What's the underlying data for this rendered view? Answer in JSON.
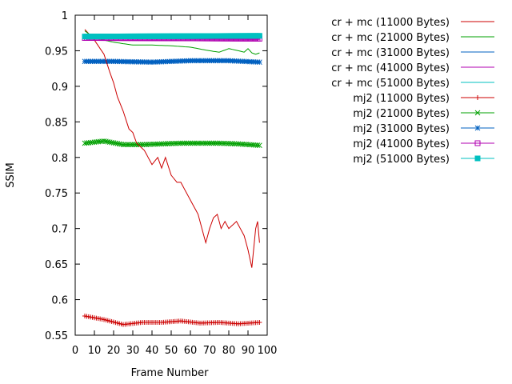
{
  "chart_data": {
    "type": "line",
    "title": "",
    "xlabel": "Frame Number",
    "ylabel": "SSIM",
    "xlim": [
      0,
      100
    ],
    "ylim": [
      0.55,
      1.0
    ],
    "x_ticks": [
      0,
      10,
      20,
      30,
      40,
      50,
      60,
      70,
      80,
      90,
      100
    ],
    "y_ticks": [
      0.55,
      0.6,
      0.65,
      0.7,
      0.75,
      0.8,
      0.85,
      0.9,
      0.95,
      1
    ],
    "grid": false,
    "legend_position": "top-right outside plot",
    "x_range": {
      "start": 5,
      "end": 96,
      "step": 1
    },
    "series": [
      {
        "name": "cr + mc (11000 Bytes)",
        "color": "#cc0000",
        "marker": "none",
        "keypoints": [
          [
            5,
            0.98
          ],
          [
            10,
            0.965
          ],
          [
            15,
            0.945
          ],
          [
            18,
            0.92
          ],
          [
            20,
            0.905
          ],
          [
            22,
            0.885
          ],
          [
            25,
            0.865
          ],
          [
            28,
            0.84
          ],
          [
            30,
            0.835
          ],
          [
            32,
            0.82
          ],
          [
            34,
            0.815
          ],
          [
            36,
            0.81
          ],
          [
            38,
            0.8
          ],
          [
            40,
            0.79
          ],
          [
            43,
            0.8
          ],
          [
            45,
            0.785
          ],
          [
            47,
            0.8
          ],
          [
            50,
            0.775
          ],
          [
            53,
            0.765
          ],
          [
            55,
            0.765
          ],
          [
            58,
            0.75
          ],
          [
            60,
            0.74
          ],
          [
            62,
            0.73
          ],
          [
            64,
            0.72
          ],
          [
            66,
            0.7
          ],
          [
            68,
            0.68
          ],
          [
            70,
            0.7
          ],
          [
            72,
            0.715
          ],
          [
            74,
            0.72
          ],
          [
            76,
            0.7
          ],
          [
            78,
            0.71
          ],
          [
            80,
            0.7
          ],
          [
            82,
            0.705
          ],
          [
            84,
            0.71
          ],
          [
            86,
            0.7
          ],
          [
            88,
            0.69
          ],
          [
            90,
            0.67
          ],
          [
            92,
            0.645
          ],
          [
            94,
            0.7
          ],
          [
            95,
            0.71
          ],
          [
            96,
            0.68
          ]
        ]
      },
      {
        "name": "cr + mc (21000 Bytes)",
        "color": "#00a000",
        "marker": "none",
        "keypoints": [
          [
            5,
            0.978
          ],
          [
            10,
            0.968
          ],
          [
            20,
            0.962
          ],
          [
            30,
            0.958
          ],
          [
            40,
            0.958
          ],
          [
            50,
            0.957
          ],
          [
            60,
            0.955
          ],
          [
            70,
            0.95
          ],
          [
            75,
            0.948
          ],
          [
            80,
            0.953
          ],
          [
            85,
            0.95
          ],
          [
            88,
            0.948
          ],
          [
            90,
            0.953
          ],
          [
            92,
            0.947
          ],
          [
            94,
            0.945
          ],
          [
            96,
            0.947
          ]
        ]
      },
      {
        "name": "cr + mc (31000 Bytes)",
        "color": "#0060c0",
        "marker": "none",
        "keypoints": [
          [
            5,
            0.968
          ],
          [
            96,
            0.967
          ]
        ]
      },
      {
        "name": "cr + mc (41000 Bytes)",
        "color": "#b000b0",
        "marker": "none",
        "keypoints": [
          [
            5,
            0.967
          ],
          [
            96,
            0.966
          ]
        ]
      },
      {
        "name": "cr + mc (51000 Bytes)",
        "color": "#00c0c0",
        "marker": "none",
        "keypoints": [
          [
            5,
            0.969
          ],
          [
            96,
            0.969
          ]
        ]
      },
      {
        "name": "mj2 (11000 Bytes)",
        "color": "#cc0000",
        "marker": "plus",
        "keypoints": [
          [
            5,
            0.577
          ],
          [
            15,
            0.572
          ],
          [
            25,
            0.565
          ],
          [
            35,
            0.568
          ],
          [
            45,
            0.568
          ],
          [
            55,
            0.57
          ],
          [
            65,
            0.567
          ],
          [
            75,
            0.568
          ],
          [
            85,
            0.566
          ],
          [
            96,
            0.568
          ]
        ]
      },
      {
        "name": "mj2 (21000 Bytes)",
        "color": "#00a000",
        "marker": "cross",
        "keypoints": [
          [
            5,
            0.82
          ],
          [
            15,
            0.823
          ],
          [
            25,
            0.818
          ],
          [
            35,
            0.818
          ],
          [
            45,
            0.819
          ],
          [
            55,
            0.82
          ],
          [
            65,
            0.82
          ],
          [
            75,
            0.82
          ],
          [
            85,
            0.819
          ],
          [
            96,
            0.817
          ]
        ]
      },
      {
        "name": "mj2 (31000 Bytes)",
        "color": "#0060c0",
        "marker": "star",
        "keypoints": [
          [
            5,
            0.935
          ],
          [
            20,
            0.935
          ],
          [
            40,
            0.934
          ],
          [
            60,
            0.936
          ],
          [
            80,
            0.936
          ],
          [
            96,
            0.934
          ]
        ]
      },
      {
        "name": "mj2 (41000 Bytes)",
        "color": "#b000b0",
        "marker": "open-square",
        "keypoints": [
          [
            5,
            0.968
          ],
          [
            96,
            0.967
          ]
        ]
      },
      {
        "name": "mj2 (51000 Bytes)",
        "color": "#00c0c0",
        "marker": "filled-square",
        "keypoints": [
          [
            5,
            0.97
          ],
          [
            96,
            0.971
          ]
        ]
      }
    ]
  }
}
